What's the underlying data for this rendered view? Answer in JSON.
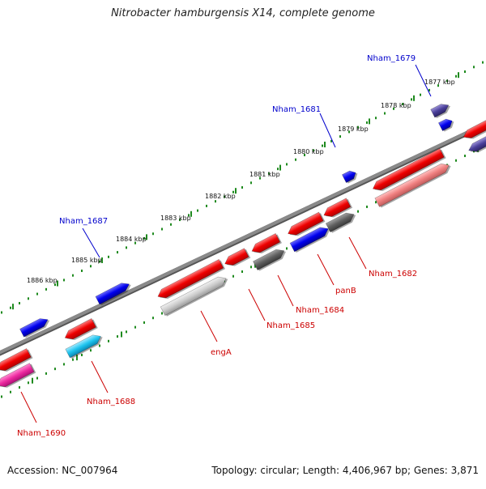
{
  "title": "Nitrobacter hamburgensis X14, complete genome",
  "footer": {
    "accession": "Accession: NC_007964",
    "summary": "Topology: circular; Length: 4,406,967 bp; Genes: 3,871"
  },
  "colors": {
    "backbone": "#8a8a8a",
    "ticks": "#1e8a1e",
    "forward_label": "#0000cc",
    "reverse_label": "#cc0000",
    "callout_forward": "#0000cc",
    "callout_reverse": "#cc0000"
  },
  "scale_labels": [
    "1886 kbp",
    "1885 kbp",
    "1884 kbp",
    "1883 kbp",
    "1882 kbp",
    "1881 kbp",
    "1880 kbp",
    "1879 kbp",
    "1878 kbp",
    "1877 kbp"
  ],
  "forward_labels": [
    "Nham_1687",
    "Nham_1681",
    "Nham_1679"
  ],
  "reverse_labels": [
    "Nham_1690",
    "Nham_1688",
    "engA",
    "Nham_1685",
    "Nham_1684",
    "panB",
    "Nham_1682"
  ]
}
